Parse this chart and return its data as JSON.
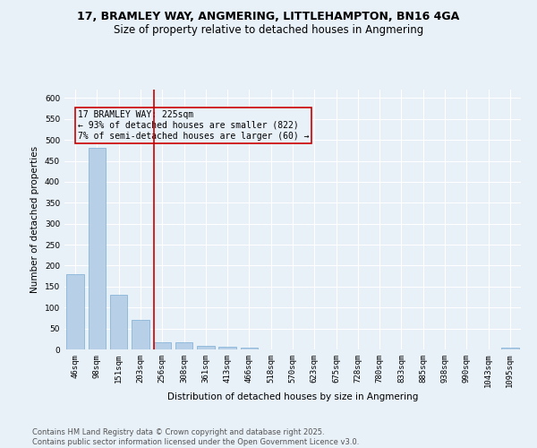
{
  "title": "17, BRAMLEY WAY, ANGMERING, LITTLEHAMPTON, BN16 4GA",
  "subtitle": "Size of property relative to detached houses in Angmering",
  "xlabel": "Distribution of detached houses by size in Angmering",
  "ylabel": "Number of detached properties",
  "categories": [
    "46sqm",
    "98sqm",
    "151sqm",
    "203sqm",
    "256sqm",
    "308sqm",
    "361sqm",
    "413sqm",
    "466sqm",
    "518sqm",
    "570sqm",
    "623sqm",
    "675sqm",
    "728sqm",
    "780sqm",
    "833sqm",
    "885sqm",
    "938sqm",
    "990sqm",
    "1043sqm",
    "1095sqm"
  ],
  "values": [
    180,
    480,
    130,
    70,
    17,
    17,
    8,
    6,
    4,
    0,
    0,
    0,
    0,
    0,
    0,
    0,
    0,
    0,
    0,
    0,
    5
  ],
  "bar_color": "#b8cfe8",
  "bar_edge_color": "#7aadd4",
  "ylim": [
    0,
    620
  ],
  "yticks": [
    0,
    50,
    100,
    150,
    200,
    250,
    300,
    350,
    400,
    450,
    500,
    550,
    600
  ],
  "vline_color": "#cc0000",
  "annotation_text": "17 BRAMLEY WAY: 225sqm\n← 93% of detached houses are smaller (822)\n7% of semi-detached houses are larger (60) →",
  "annotation_box_color": "#cc0000",
  "background_color": "#e8f0f8",
  "grid_color": "#ffffff",
  "footer": "Contains HM Land Registry data © Crown copyright and database right 2025.\nContains public sector information licensed under the Open Government Licence v3.0.",
  "title_fontsize": 9,
  "subtitle_fontsize": 8.5,
  "label_fontsize": 7.5,
  "tick_fontsize": 6.5,
  "footer_fontsize": 6,
  "annotation_fontsize": 7
}
